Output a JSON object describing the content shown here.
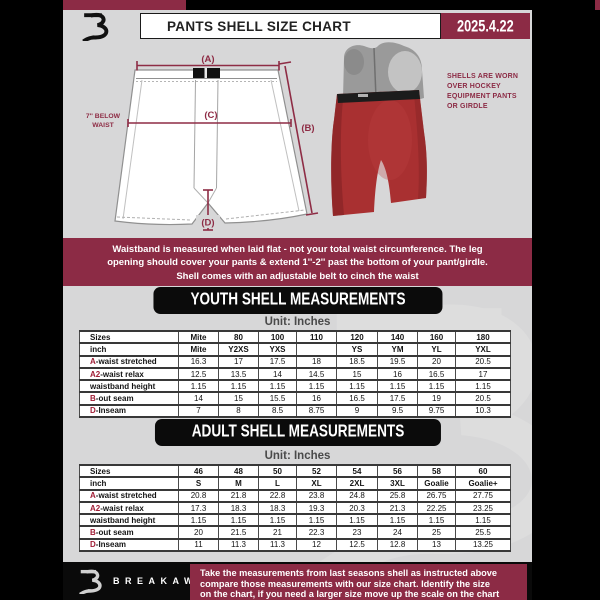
{
  "header": {
    "title": "PANTS SHELL SIZE CHART",
    "date": "2025.4.22"
  },
  "diagram": {
    "label_a": "(A)",
    "label_b": "(B)",
    "label_c": "(C)",
    "label_d": "(D)",
    "waist_note_line1": "7'' BELOW",
    "waist_note_line2": "WAIST"
  },
  "photo": {
    "caption_lines": [
      "SHELLS ARE WORN",
      "OVER HOCKEY",
      "EQUIPMENT PANTS",
      "OR GIRDLE"
    ]
  },
  "notice_band": {
    "lines": [
      "Waistband is measured when laid flat - not your total waist circumference. The leg",
      "opening should cover your pants & extend 1''-2'' past the bottom of your pant/girdle.",
      "Shell comes with an adjustable belt to cinch the waist"
    ]
  },
  "youth": {
    "banner": "YOUTH SHELL MEASUREMENTS",
    "unit": "Unit: Inches",
    "table": {
      "rows": [
        {
          "prefix": "",
          "label": "Sizes",
          "bold": true,
          "cells": [
            "Mite",
            "80",
            "100",
            "110",
            "120",
            "140",
            "160",
            "180"
          ]
        },
        {
          "prefix": "",
          "label": "inch",
          "bold": true,
          "cells": [
            "Mite",
            "Y2XS",
            "YXS",
            "",
            "YS",
            "YM",
            "YL",
            "YXL"
          ]
        },
        {
          "prefix": "A",
          "label": "-waist stretched",
          "bold": false,
          "cells": [
            "16.3",
            "17",
            "17.5",
            "18",
            "18.5",
            "19.5",
            "20",
            "20.5"
          ]
        },
        {
          "prefix": "A2",
          "label": "-waist relax",
          "bold": false,
          "cells": [
            "12.5",
            "13.5",
            "14",
            "14.5",
            "15",
            "16",
            "16.5",
            "17"
          ]
        },
        {
          "prefix": "",
          "label": "waistband height",
          "bold": false,
          "cells": [
            "1.15",
            "1.15",
            "1.15",
            "1.15",
            "1.15",
            "1.15",
            "1.15",
            "1.15"
          ]
        },
        {
          "prefix": "B",
          "label": "-out seam",
          "bold": false,
          "cells": [
            "14",
            "15",
            "15.5",
            "16",
            "16.5",
            "17.5",
            "19",
            "20.5"
          ]
        },
        {
          "prefix": "D",
          "label": "-Inseam",
          "bold": false,
          "cells": [
            "7",
            "8",
            "8.5",
            "8.75",
            "9",
            "9.5",
            "9.75",
            "10.3"
          ]
        }
      ]
    }
  },
  "adult": {
    "banner": "ADULT SHELL MEASUREMENTS",
    "unit": "Unit: Inches",
    "table": {
      "rows": [
        {
          "prefix": "",
          "label": "Sizes",
          "bold": true,
          "cells": [
            "46",
            "48",
            "50",
            "52",
            "54",
            "56",
            "58",
            "60"
          ]
        },
        {
          "prefix": "",
          "label": "inch",
          "bold": true,
          "cells": [
            "S",
            "M",
            "L",
            "XL",
            "2XL",
            "3XL",
            "Goalie",
            "Goalie+"
          ]
        },
        {
          "prefix": "A",
          "label": "-waist stretched",
          "bold": false,
          "cells": [
            "20.8",
            "21.8",
            "22.8",
            "23.8",
            "24.8",
            "25.8",
            "26.75",
            "27.75"
          ]
        },
        {
          "prefix": "A2",
          "label": "-waist relax",
          "bold": false,
          "cells": [
            "17.3",
            "18.3",
            "18.3",
            "19.3",
            "20.3",
            "21.3",
            "22.25",
            "23.25"
          ]
        },
        {
          "prefix": "",
          "label": "waistband height",
          "bold": false,
          "cells": [
            "1.15",
            "1.15",
            "1.15",
            "1.15",
            "1.15",
            "1.15",
            "1.15",
            "1.15"
          ]
        },
        {
          "prefix": "B",
          "label": "-out seam",
          "bold": false,
          "cells": [
            "20",
            "21.5",
            "21",
            "22.3",
            "23",
            "24",
            "25",
            "25.5"
          ]
        },
        {
          "prefix": "D",
          "label": "-Inseam",
          "bold": false,
          "cells": [
            "11",
            "11.3",
            "11.3",
            "12",
            "12.5",
            "12.8",
            "13",
            "13.25"
          ]
        }
      ]
    }
  },
  "footer": {
    "brand": "BREAKAWAY",
    "lines": [
      "Take the measurements from last seasons shell as instructed above",
      "compare those measurements  with our size chart. Identify the size",
      "on the chart, if you need a larger size move up the scale on the chart"
    ]
  },
  "colors": {
    "maroon": "#8C2B45",
    "table_letter_red": "#A01D35",
    "shell_red": "#A93031",
    "content_gray": "#D7D7D8"
  }
}
